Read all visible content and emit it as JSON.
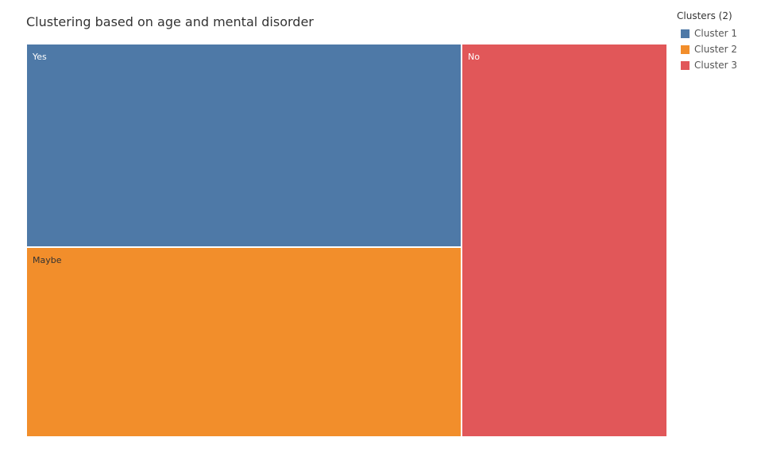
{
  "chart_data": {
    "type": "treemap",
    "title": "Clustering based on age and mental disorder",
    "legend": {
      "title": "Clusters (2)",
      "placement": "right"
    },
    "nodes": [
      {
        "label": "Yes",
        "cluster": "Cluster 1",
        "color": "#4e79a7",
        "text_color": "#ffffff"
      },
      {
        "label": "Maybe",
        "cluster": "Cluster 2",
        "color": "#f28e2b",
        "text_color": "#333333"
      },
      {
        "label": "No",
        "cluster": "Cluster 3",
        "color": "#e15759",
        "text_color": "#ffffff"
      }
    ],
    "clusters": [
      {
        "name": "Cluster 1",
        "color": "#4e79a7"
      },
      {
        "name": "Cluster 2",
        "color": "#f28e2b"
      },
      {
        "name": "Cluster 3",
        "color": "#e15759"
      }
    ]
  }
}
